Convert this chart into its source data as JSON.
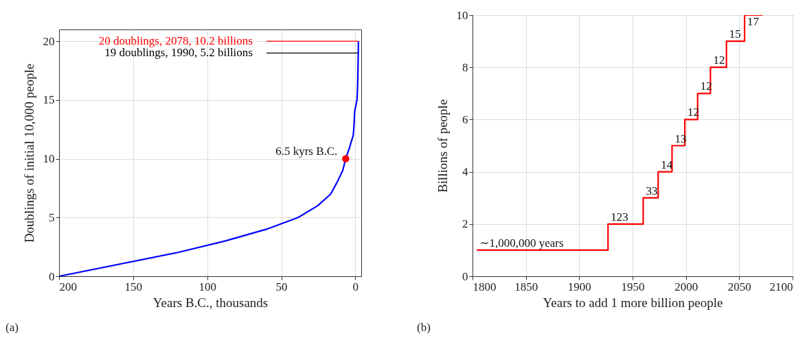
{
  "chart_data": [
    {
      "type": "line",
      "xlabel": "Years B.C., thousands",
      "ylabel": "Doublings of initial 10,000 people",
      "xlim": [
        200,
        -4
      ],
      "ylim": [
        0,
        21
      ],
      "xticks": [
        200,
        150,
        100,
        50,
        0
      ],
      "yticks": [
        0,
        5,
        10,
        15,
        20
      ],
      "grid": true,
      "series": [
        {
          "color": "#0000ff",
          "x": [
            200,
            120.7,
            88,
            60,
            38.6,
            25.4,
            16.6,
            12.3,
            8.5,
            6.5,
            3.8,
            1.4,
            0.8,
            0.5,
            -1.1,
            -1.5,
            -1.99,
            -2.078
          ],
          "values": [
            0,
            2,
            3,
            4,
            5,
            6,
            7,
            8,
            9,
            10,
            11,
            12,
            13,
            14,
            15,
            16,
            19,
            20
          ]
        },
        {
          "name": "20 doublings, 2078, 10.2 billions",
          "color": "#ff0000",
          "x": [
            60,
            -2.078
          ],
          "values": [
            20,
            20
          ]
        },
        {
          "name": "19 doublings, 1990, 5.2 billions",
          "color": "#000000",
          "x": [
            60,
            -1.99
          ],
          "values": [
            19,
            19
          ]
        },
        {
          "type": "scatter",
          "color": "#ff0000",
          "x": [
            6.5
          ],
          "values": [
            10
          ]
        }
      ],
      "annotations": [
        {
          "text": "6.5 kyrs B.C.",
          "x": 6.5,
          "y": 10
        },
        "(a)"
      ]
    },
    {
      "type": "step",
      "xlabel": "Years to add 1 more billion people",
      "ylabel": "Billions of people",
      "xlim": [
        1800,
        2100
      ],
      "ylim": [
        0,
        10
      ],
      "xticks": [
        1800,
        1850,
        1900,
        1950,
        2000,
        2050,
        2100
      ],
      "yticks": [
        0,
        2,
        4,
        6,
        8,
        10
      ],
      "grid": true,
      "x": [
        1804,
        1927,
        1960,
        1974,
        1987,
        1999,
        2011,
        2023,
        2038,
        2055,
        2072
      ],
      "values": [
        1,
        2,
        3,
        4,
        5,
        6,
        7,
        8,
        9,
        10,
        10
      ],
      "color": "#ff0000",
      "annotations": [
        {
          "text": "∼1,000,000 years",
          "x": 1804,
          "y": 1
        },
        {
          "text": "123",
          "x": 1927,
          "y": 2
        },
        {
          "text": "33",
          "x": 1960,
          "y": 3
        },
        {
          "text": "14",
          "x": 1974,
          "y": 4
        },
        {
          "text": "13",
          "x": 1987,
          "y": 5
        },
        {
          "text": "12",
          "x": 1999,
          "y": 6
        },
        {
          "text": "12",
          "x": 2011,
          "y": 7
        },
        {
          "text": "12",
          "x": 2023,
          "y": 8
        },
        {
          "text": "15",
          "x": 2038,
          "y": 9
        },
        {
          "text": "17",
          "x": 2055,
          "y": 10
        },
        "(b)"
      ]
    }
  ]
}
